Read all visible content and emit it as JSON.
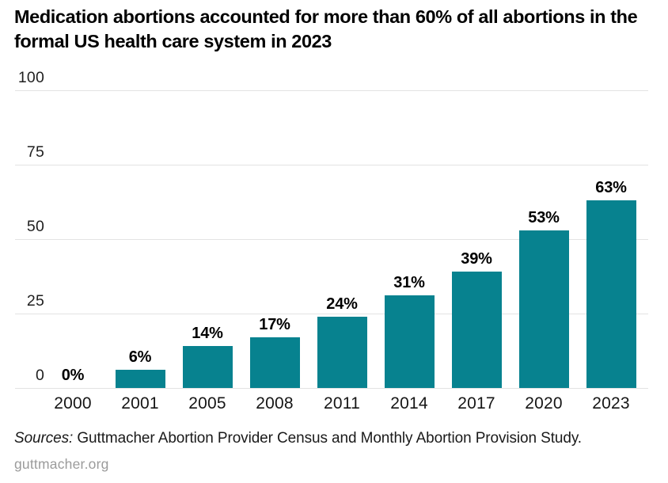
{
  "header": {
    "title": "Medication abortions accounted for more than 60% of all abortions in the\nformal US health care system in 2023"
  },
  "chart_data": {
    "type": "bar",
    "title": "Medication abortions accounted for more than 60% of all abortions in the formal US health care system in 2023",
    "categories": [
      "2000",
      "2001",
      "2005",
      "2008",
      "2011",
      "2014",
      "2017",
      "2020",
      "2023"
    ],
    "values": [
      0,
      6,
      14,
      17,
      24,
      31,
      39,
      53,
      63
    ],
    "value_labels": [
      "0%",
      "6%",
      "14%",
      "17%",
      "24%",
      "31%",
      "39%",
      "53%",
      "63%"
    ],
    "xlabel": "",
    "ylabel": "",
    "ylim": [
      0,
      100
    ],
    "yticks": [
      100,
      75,
      50,
      25,
      0
    ],
    "grid": true,
    "legend": false,
    "bar_color": "#07828F",
    "gridline_color": "#e3e3e3"
  },
  "footer": {
    "sources_label": "Sources:",
    "sources_text": " Guttmacher Abortion Provider Census and Monthly Abortion Provision Study.",
    "site": "guttmacher.org"
  }
}
